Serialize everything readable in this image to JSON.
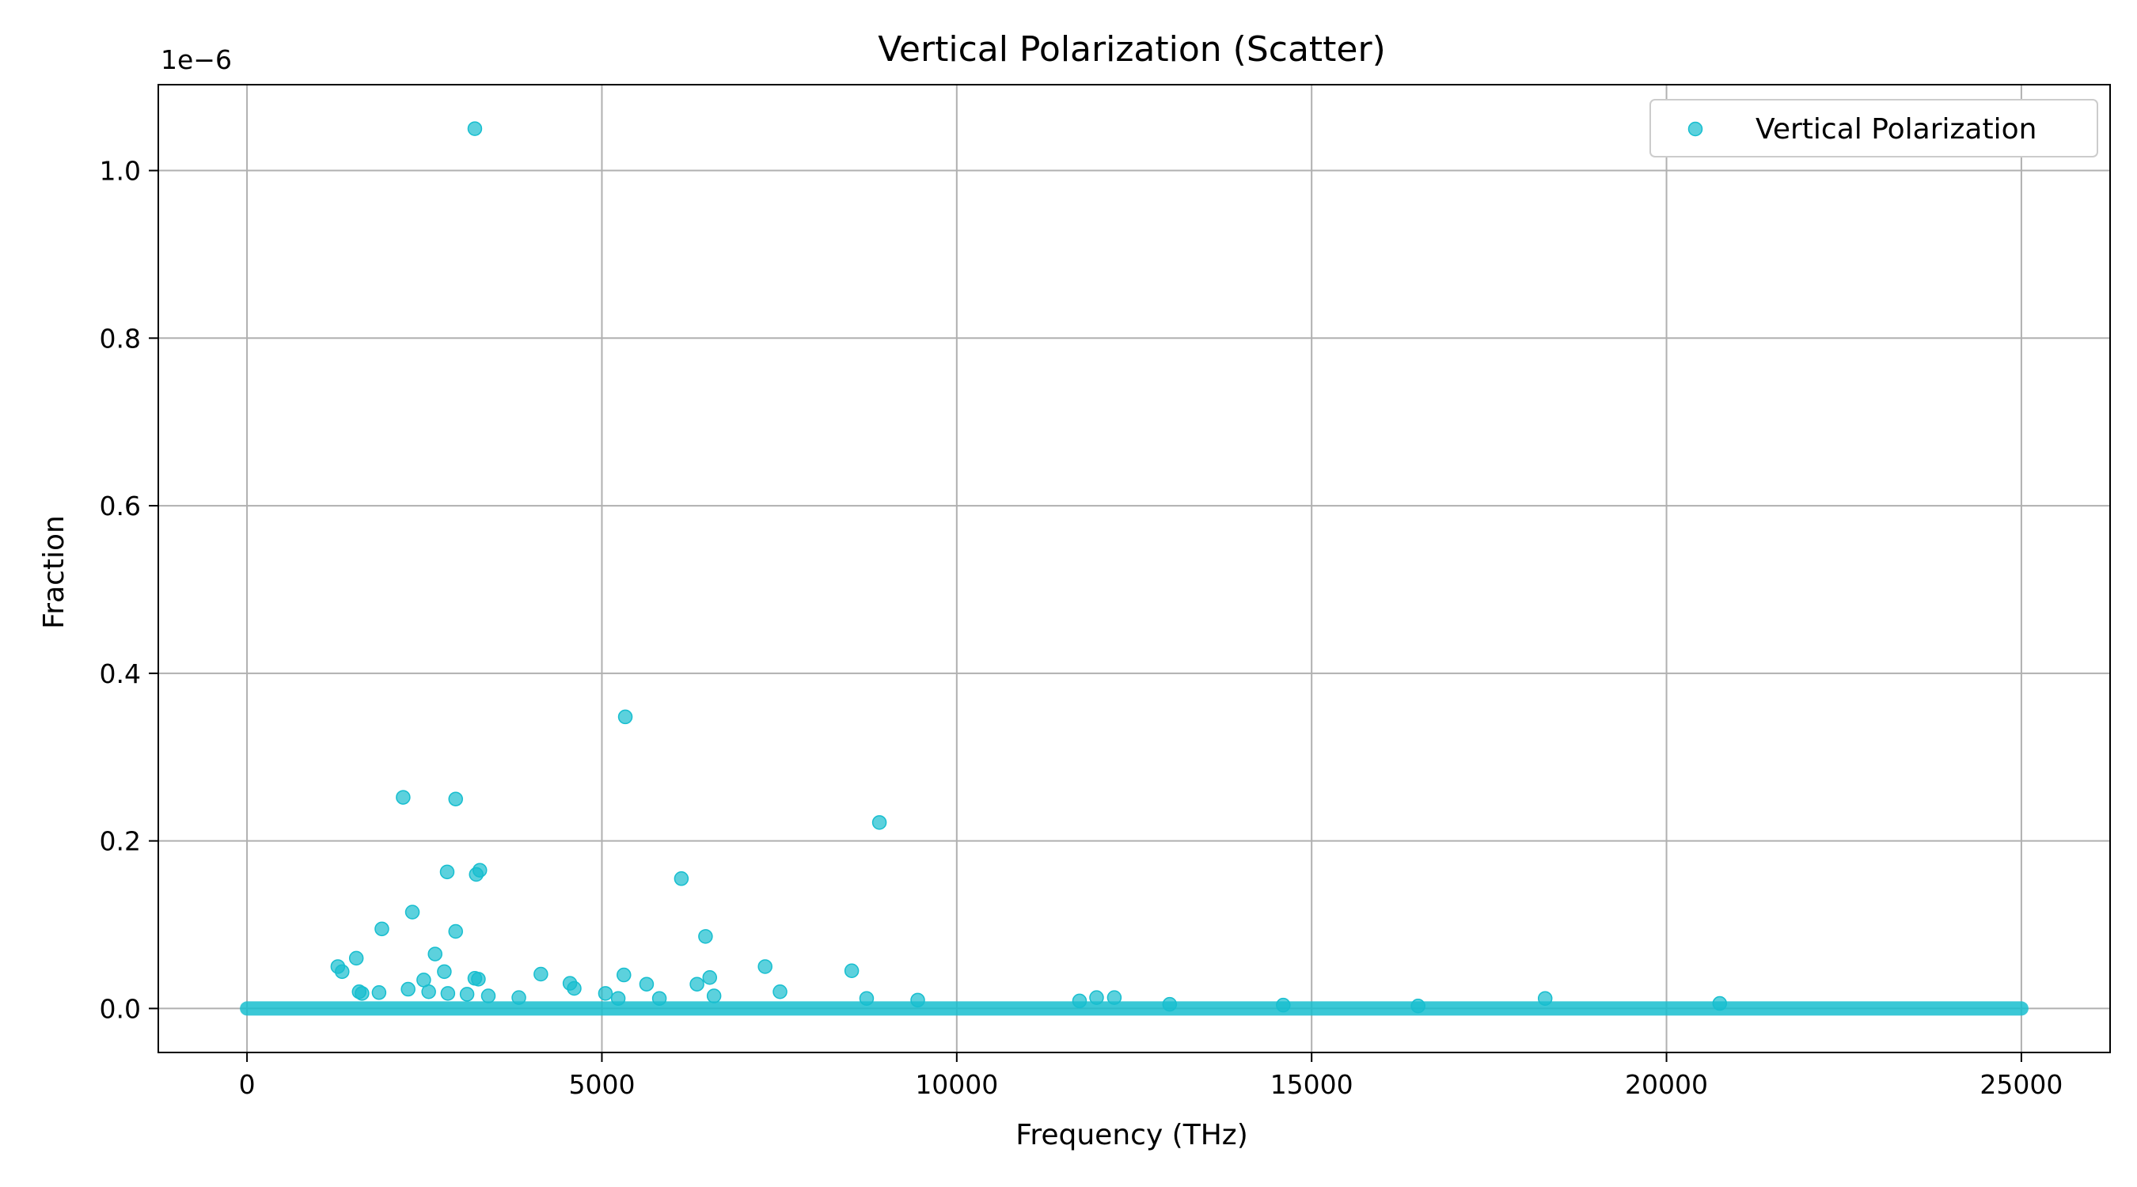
{
  "chart_data": {
    "type": "scatter",
    "title": "Vertical Polarization (Scatter)",
    "xlabel": "Frequency (THz)",
    "ylabel": "Fraction",
    "y_offset_text": "1e−6",
    "xlim": [
      -1250,
      26250
    ],
    "ylim": [
      -0.0525,
      1.1025
    ],
    "y_scale_factor": 1e-06,
    "xticks": [
      0,
      5000,
      10000,
      15000,
      20000,
      25000
    ],
    "xtick_labels": [
      "0",
      "5000",
      "10000",
      "15000",
      "20000",
      "25000"
    ],
    "yticks": [
      0.0,
      0.2,
      0.4,
      0.6,
      0.8,
      1.0
    ],
    "ytick_labels": [
      "0.0",
      "0.2",
      "0.4",
      "0.6",
      "0.8",
      "1.0"
    ],
    "grid": true,
    "legend_position": "upper-right",
    "color": "#17BECF",
    "series": [
      {
        "name": "Vertical Polarization",
        "x": [
          3210,
          5330,
          2200,
          2940,
          8910,
          3280,
          2820,
          3230,
          6120,
          2330,
          1900,
          2940,
          6460,
          2650,
          1540,
          1280,
          1340,
          2780,
          7300,
          8520,
          4140,
          5310,
          6520,
          2490,
          3210,
          3260,
          4550,
          4610,
          5630,
          6340,
          1580,
          1620,
          1860,
          2270,
          2560,
          2830,
          3100,
          3400,
          3830,
          5050,
          5230,
          5810,
          6580,
          7510,
          8730,
          9450,
          11730,
          11970,
          12220,
          18290,
          20750,
          13000,
          14600,
          16500
        ],
        "y": [
          1.05,
          0.348,
          0.252,
          0.25,
          0.222,
          0.165,
          0.163,
          0.16,
          0.155,
          0.115,
          0.095,
          0.092,
          0.086,
          0.065,
          0.06,
          0.05,
          0.044,
          0.044,
          0.05,
          0.045,
          0.041,
          0.04,
          0.037,
          0.034,
          0.036,
          0.035,
          0.03,
          0.024,
          0.029,
          0.029,
          0.02,
          0.018,
          0.019,
          0.023,
          0.02,
          0.018,
          0.017,
          0.015,
          0.013,
          0.018,
          0.012,
          0.012,
          0.015,
          0.02,
          0.012,
          0.01,
          0.009,
          0.013,
          0.013,
          0.012,
          0.006,
          0.005,
          0.004,
          0.003
        ],
        "dense_baseline": {
          "x_range": [
            0,
            25000
          ],
          "y": 0.0
        }
      }
    ]
  }
}
